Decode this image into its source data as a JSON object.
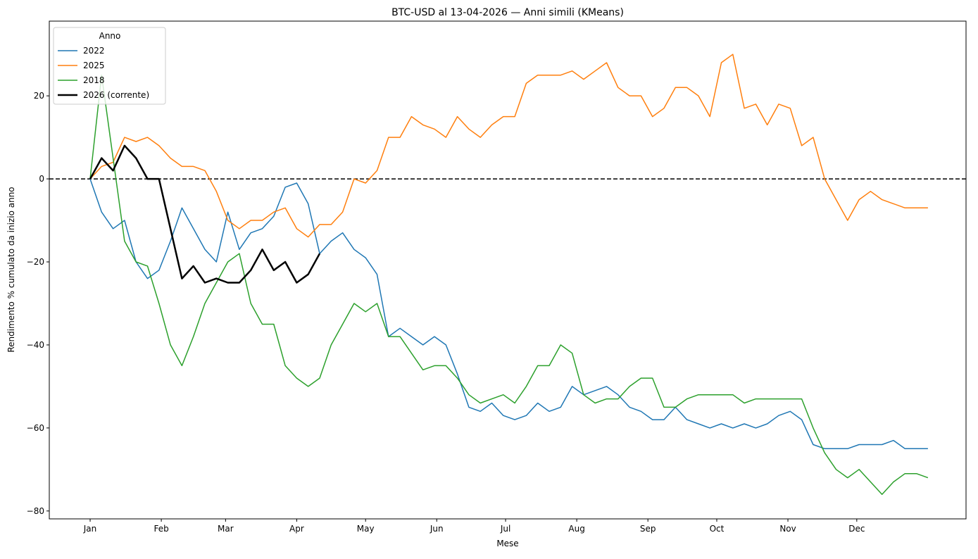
{
  "chart_data": {
    "type": "line",
    "title": "BTC-USD al 13-04-2026 — Anni simili (KMeans)",
    "xlabel": "Mese",
    "ylabel": "Rendimento % cumulato da inizio anno",
    "legend_title": "Anno",
    "legend": "upper left",
    "xlim": [
      -17.8,
      381.6
    ],
    "ylim": [
      -81.9,
      38
    ],
    "xticks": [
      {
        "value": 0,
        "label": "Jan"
      },
      {
        "value": 31,
        "label": "Feb"
      },
      {
        "value": 59,
        "label": "Mar"
      },
      {
        "value": 90,
        "label": "Apr"
      },
      {
        "value": 120,
        "label": "May"
      },
      {
        "value": 151,
        "label": "Jun"
      },
      {
        "value": 181,
        "label": "Jul"
      },
      {
        "value": 212,
        "label": "Aug"
      },
      {
        "value": 243,
        "label": "Sep"
      },
      {
        "value": 273,
        "label": "Oct"
      },
      {
        "value": 304,
        "label": "Nov"
      },
      {
        "value": 334,
        "label": "Dec"
      }
    ],
    "yticks": [
      {
        "value": -80,
        "label": "−80"
      },
      {
        "value": -60,
        "label": "−60"
      },
      {
        "value": -40,
        "label": "−40"
      },
      {
        "value": -20,
        "label": "−20"
      },
      0,
      20
    ],
    "hline": 0,
    "x": [
      0,
      5,
      10,
      15,
      20,
      25,
      30,
      35,
      40,
      45,
      50,
      55,
      60,
      65,
      70,
      75,
      80,
      85,
      90,
      95,
      100,
      105,
      110,
      115,
      120,
      125,
      130,
      135,
      140,
      145,
      150,
      155,
      160,
      165,
      170,
      175,
      180,
      185,
      190,
      195,
      200,
      205,
      210,
      215,
      220,
      225,
      230,
      235,
      240,
      245,
      250,
      255,
      260,
      265,
      270,
      275,
      280,
      285,
      290,
      295,
      300,
      305,
      310,
      315,
      320,
      325,
      330,
      335,
      340,
      345,
      350,
      355,
      360,
      365
    ],
    "series": [
      {
        "name": "2022",
        "color": "#1f77b4",
        "width": 1.5,
        "values": [
          0,
          -8,
          -12,
          -10,
          -20,
          -24,
          -22,
          -15,
          -7,
          -12,
          -17,
          -20,
          -8,
          -17,
          -13,
          -12,
          -9,
          -2,
          -1,
          -6,
          -18,
          -15,
          -13,
          -17,
          -19,
          -23,
          -38,
          -36,
          -38,
          -40,
          -38,
          -40,
          -47,
          -55,
          -56,
          -54,
          -57,
          -58,
          -57,
          -54,
          -56,
          -55,
          -50,
          -52,
          -51,
          -50,
          -52,
          -55,
          -56,
          -58,
          -58,
          -55,
          -58,
          -59,
          -60,
          -59,
          -60,
          -59,
          -60,
          -59,
          -57,
          -56,
          -58,
          -64,
          -65,
          -65,
          -65,
          -64,
          -64,
          -64,
          -63,
          -65,
          -65,
          -65
        ]
      },
      {
        "name": "2025",
        "color": "#ff7f0e",
        "width": 1.5,
        "values": [
          0,
          3,
          4,
          10,
          9,
          10,
          8,
          5,
          3,
          3,
          2,
          -3,
          -10,
          -12,
          -10,
          -10,
          -8,
          -7,
          -12,
          -14,
          -11,
          -11,
          -8,
          0,
          -1,
          2,
          10,
          10,
          15,
          13,
          12,
          10,
          15,
          12,
          10,
          13,
          15,
          15,
          23,
          25,
          25,
          25,
          26,
          24,
          26,
          28,
          22,
          20,
          20,
          15,
          17,
          22,
          22,
          20,
          15,
          28,
          30,
          17,
          18,
          13,
          18,
          17,
          8,
          10,
          0,
          -5,
          -10,
          -5,
          -3,
          -5,
          -6,
          -7,
          -7,
          -7
        ]
      },
      {
        "name": "2018",
        "color": "#2ca02c",
        "width": 1.5,
        "values": [
          0,
          25,
          5,
          -15,
          -20,
          -21,
          -30,
          -40,
          -45,
          -38,
          -30,
          -25,
          -20,
          -18,
          -30,
          -35,
          -35,
          -45,
          -48,
          -50,
          -48,
          -40,
          -35,
          -30,
          -32,
          -30,
          -38,
          -38,
          -42,
          -46,
          -45,
          -45,
          -48,
          -52,
          -54,
          -53,
          -52,
          -54,
          -50,
          -45,
          -45,
          -40,
          -42,
          -52,
          -54,
          -53,
          -53,
          -50,
          -48,
          -48,
          -55,
          -55,
          -53,
          -52,
          -52,
          -52,
          -52,
          -54,
          -53,
          -53,
          -53,
          -53,
          -53,
          -60,
          -66,
          -70,
          -72,
          -70,
          -73,
          -76,
          -73,
          -71,
          -71,
          -72
        ]
      },
      {
        "name": "2026 (corrente)",
        "color": "#000000",
        "width": 2.5,
        "values": [
          0,
          5,
          2,
          8,
          5,
          0,
          0,
          -12,
          -24,
          -21,
          -25,
          -24,
          -25,
          -25,
          -22,
          -17,
          -22,
          -20,
          -25,
          -23,
          -18,
          null,
          null,
          null,
          null,
          null,
          null,
          null,
          null,
          null,
          null,
          null,
          null,
          null,
          null,
          null,
          null,
          null,
          null,
          null,
          null,
          null,
          null,
          null,
          null,
          null,
          null,
          null,
          null,
          null,
          null,
          null,
          null,
          null,
          null,
          null,
          null,
          null,
          null,
          null,
          null,
          null,
          null,
          null,
          null,
          null,
          null,
          null,
          null,
          null,
          null,
          null,
          null,
          null
        ]
      }
    ]
  }
}
